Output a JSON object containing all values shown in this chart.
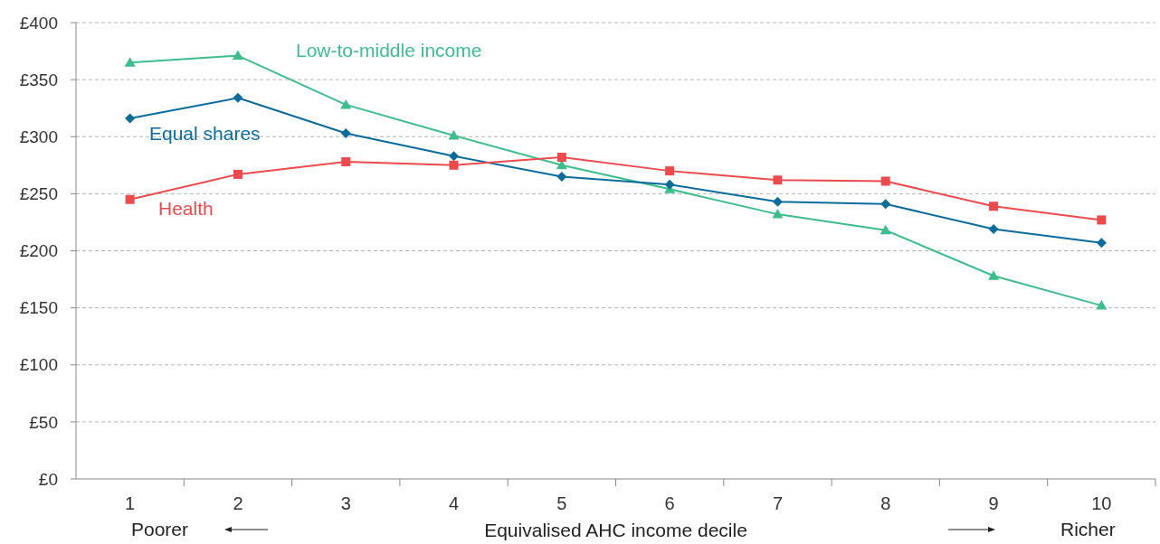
{
  "chart_data": {
    "type": "line",
    "xlabel": "Equivalised AHC income decile",
    "categories": [
      "1",
      "2",
      "3",
      "4",
      "5",
      "6",
      "7",
      "8",
      "9",
      "10"
    ],
    "series": [
      {
        "name": "Low-to-middle income",
        "color": "#3dbd8c",
        "marker": "triangle",
        "values": [
          365,
          371,
          328,
          301,
          275,
          254,
          232,
          218,
          178,
          152
        ]
      },
      {
        "name": "Equal shares",
        "color": "#0b6c9c",
        "marker": "diamond",
        "values": [
          316,
          334,
          303,
          283,
          265,
          258,
          243,
          241,
          219,
          207
        ]
      },
      {
        "name": "Health",
        "color": "#ec4a4c",
        "marker": "square",
        "values": [
          245,
          267,
          278,
          275,
          282,
          270,
          262,
          261,
          239,
          227
        ]
      }
    ],
    "ylim": [
      0,
      400
    ],
    "yticks": [
      {
        "value": 0,
        "label": "£0"
      },
      {
        "value": 50,
        "label": "£50"
      },
      {
        "value": 100,
        "label": "£100"
      },
      {
        "value": 150,
        "label": "£150"
      },
      {
        "value": 200,
        "label": "£200"
      },
      {
        "value": 250,
        "label": "£250"
      },
      {
        "value": 300,
        "label": "£300"
      },
      {
        "value": 350,
        "label": "£350"
      },
      {
        "value": 400,
        "label": "£400"
      }
    ],
    "grid": "y",
    "legend": false,
    "line_style": "solid",
    "annotations": [
      "Poorer",
      "Richer"
    ]
  }
}
